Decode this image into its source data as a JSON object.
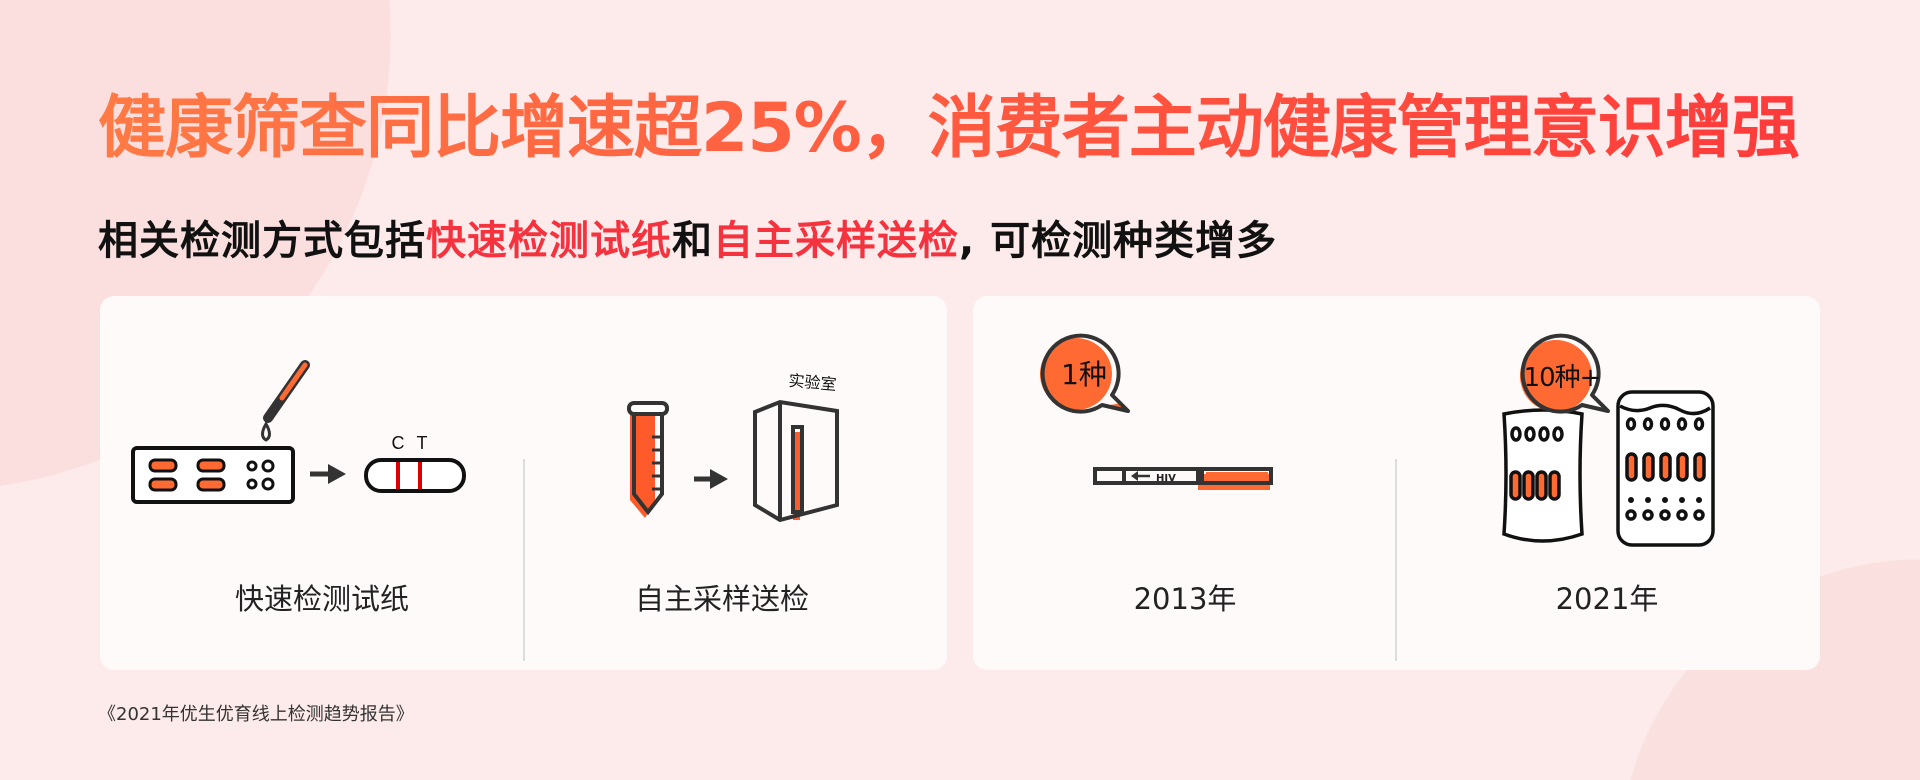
{
  "title": "健康筛查同比增速超25%，消费者主动健康管理意识增强",
  "subtitle": {
    "part1": "相关检测方式包括",
    "highlight1": "快速检测试纸",
    "part2": "和",
    "highlight2": "自主采样送检",
    "part3": ", 可检测种类增多"
  },
  "left_card": {
    "rapid_test": {
      "label": "快速检测试纸",
      "strip_c": "C",
      "strip_t": "T"
    },
    "self_sampling": {
      "label": "自主采样送检",
      "lab_text": "实验室"
    }
  },
  "right_card": {
    "year_2013": {
      "label": "2013年",
      "bubble": "1种",
      "strip_text": "HIV"
    },
    "year_2021": {
      "label": "2021年",
      "bubble": "10种+"
    }
  },
  "source": "《2021年优生优育线上检测趋势报告》",
  "colors": {
    "accent_orange": "#ff6a33",
    "accent_red": "#f5333f",
    "background": "#fdeaea"
  }
}
